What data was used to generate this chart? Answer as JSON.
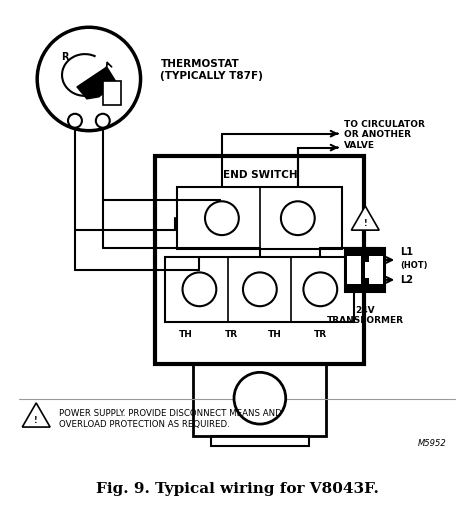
{
  "bg_color": "#ffffff",
  "title": "Fig. 9. Typical wiring for V8043F.",
  "thermostat_label": "THERMOSTAT\n(TYPICALLY T87F)",
  "end_switch_label": "END SWITCH",
  "circulator_label": "TO CIRCULATOR\nOR ANOTHER\nVALVE",
  "transformer_label": "24V\nTRANSFORMER",
  "warning_text": "POWER SUPPLY. PROVIDE DISCONNECT MEANS AND\nOVERLOAD PROTECTION AS REQUIRED.",
  "model_number": "M5952",
  "terminal_labels": [
    "TH",
    "TR",
    "TH",
    "TR"
  ]
}
